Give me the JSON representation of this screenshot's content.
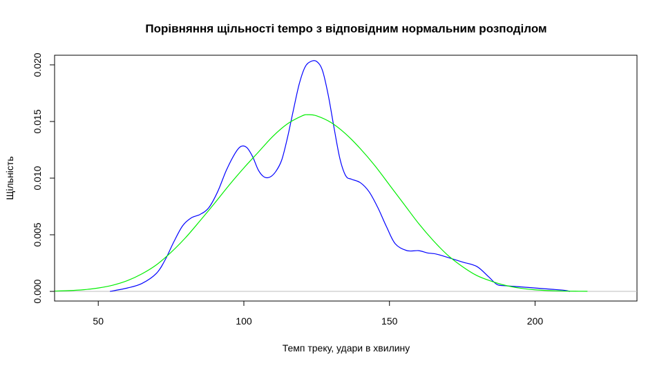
{
  "chart_data": {
    "type": "line",
    "title": "Порівняння щільності tempo з відповідним нормальним розподілом",
    "xlabel": "Темп треку, удари в хвилину",
    "ylabel": "Щільність",
    "xlim": [
      35,
      235
    ],
    "ylim": [
      -0.00085,
      0.02085
    ],
    "x_ticks": [
      50,
      100,
      150,
      200
    ],
    "y_ticks": [
      0.0,
      0.005,
      0.01,
      0.015,
      0.02
    ],
    "x_tick_labels": [
      "50",
      "100",
      "150",
      "200"
    ],
    "y_tick_labels": [
      "0.000",
      "0.005",
      "0.010",
      "0.015",
      "0.020"
    ],
    "baseline": {
      "y": 0,
      "color": "#bebebe"
    },
    "grid": false,
    "legend": "none",
    "series": [
      {
        "color": "#0000ff",
        "x": [
          54,
          60,
          65,
          70,
          73,
          76,
          79,
          82,
          85,
          88,
          91,
          94,
          97,
          99,
          101,
          103,
          105,
          107,
          109,
          111,
          113,
          115,
          117,
          119,
          121,
          123,
          125,
          127,
          129,
          131,
          133,
          135,
          137,
          140,
          143,
          146,
          149,
          152,
          156,
          160,
          163,
          166,
          170,
          175,
          180,
          184,
          187,
          190,
          195,
          200,
          205,
          210,
          212
        ],
        "y": [
          0.0,
          0.0003,
          0.0007,
          0.0016,
          0.0028,
          0.0044,
          0.0058,
          0.0065,
          0.0068,
          0.0074,
          0.0088,
          0.0107,
          0.0122,
          0.0128,
          0.0127,
          0.0119,
          0.0107,
          0.0101,
          0.0101,
          0.0106,
          0.0116,
          0.0136,
          0.016,
          0.0183,
          0.0198,
          0.0203,
          0.0203,
          0.0195,
          0.0173,
          0.0144,
          0.0117,
          0.0102,
          0.0099,
          0.0096,
          0.0088,
          0.0074,
          0.0057,
          0.0042,
          0.0036,
          0.0036,
          0.0034,
          0.0033,
          0.003,
          0.0026,
          0.0022,
          0.0013,
          0.0006,
          0.0005,
          0.0004,
          0.0003,
          0.0002,
          0.0001,
          0.0
        ]
      },
      {
        "color": "#00ee00",
        "x": [
          35,
          40,
          45,
          50,
          55,
          60,
          65,
          70,
          75,
          80,
          85,
          90,
          95,
          100,
          105,
          110,
          115,
          120,
          122,
          125,
          130,
          135,
          140,
          145,
          150,
          155,
          160,
          165,
          170,
          175,
          180,
          185,
          190,
          195,
          200,
          205,
          210,
          215,
          218
        ],
        "y": [
          3e-05,
          7e-05,
          0.00015,
          0.0003,
          0.00055,
          0.00095,
          0.00155,
          0.00235,
          0.00345,
          0.00475,
          0.00625,
          0.0078,
          0.0094,
          0.0109,
          0.0123,
          0.0137,
          0.0148,
          0.0155,
          0.0156,
          0.0155,
          0.0149,
          0.0139,
          0.0126,
          0.0111,
          0.0094,
          0.0077,
          0.006,
          0.0045,
          0.0032,
          0.0022,
          0.0014,
          0.0009,
          0.00052,
          0.00028,
          0.00014,
          7e-05,
          3e-05,
          1.5e-05,
          1e-05
        ]
      }
    ]
  }
}
